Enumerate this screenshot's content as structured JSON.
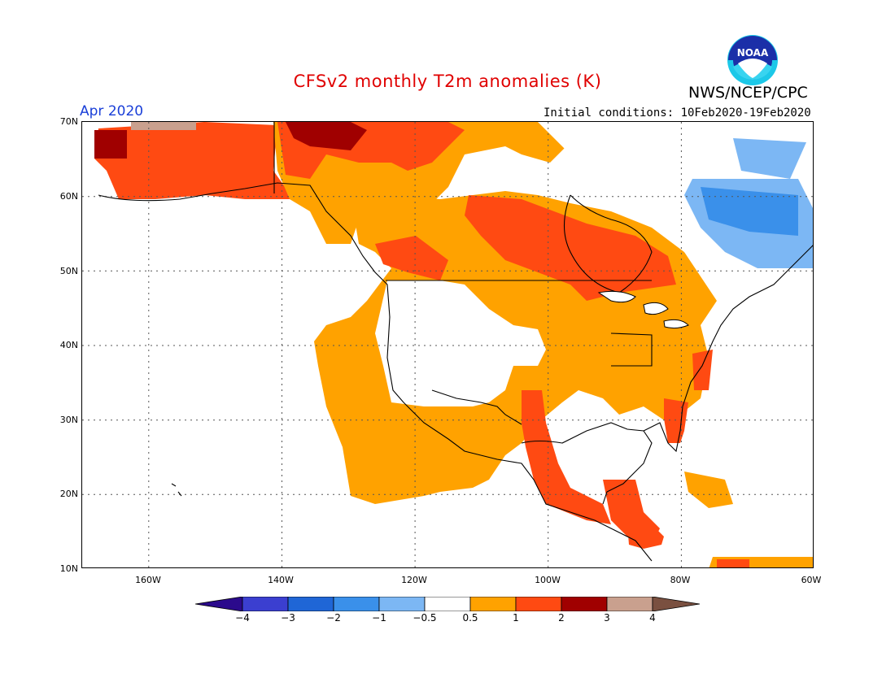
{
  "header": {
    "title": "CFSv2 monthly T2m anomalies (K)",
    "org": "NWS/NCEP/CPC",
    "period": "Apr 2020",
    "initial_conditions": "Initial conditions: 10Feb2020-19Feb2020",
    "logo_text": "NOAA",
    "title_color": "#e00000",
    "period_color": "#1a3fd8"
  },
  "axes": {
    "lat_labels": [
      "70N",
      "60N",
      "50N",
      "40N",
      "30N",
      "20N",
      "10N"
    ],
    "lon_labels": [
      "160W",
      "140W",
      "120W",
      "100W",
      "80W",
      "60W"
    ],
    "lat_range": [
      10,
      70
    ],
    "lon_range": [
      -170,
      -60
    ]
  },
  "colorbar": {
    "labels": [
      "-4",
      "-3",
      "-2",
      "-1",
      "-0.5",
      "0.5",
      "1",
      "2",
      "3",
      "4"
    ],
    "colors": [
      "#2b0a8c",
      "#3b3fd0",
      "#1f66d6",
      "#3a90ea",
      "#7cb7f4",
      "#ffffff",
      "#ffa200",
      "#ff4a12",
      "#a00000",
      "#c9a08e",
      "#7a5040"
    ]
  }
}
